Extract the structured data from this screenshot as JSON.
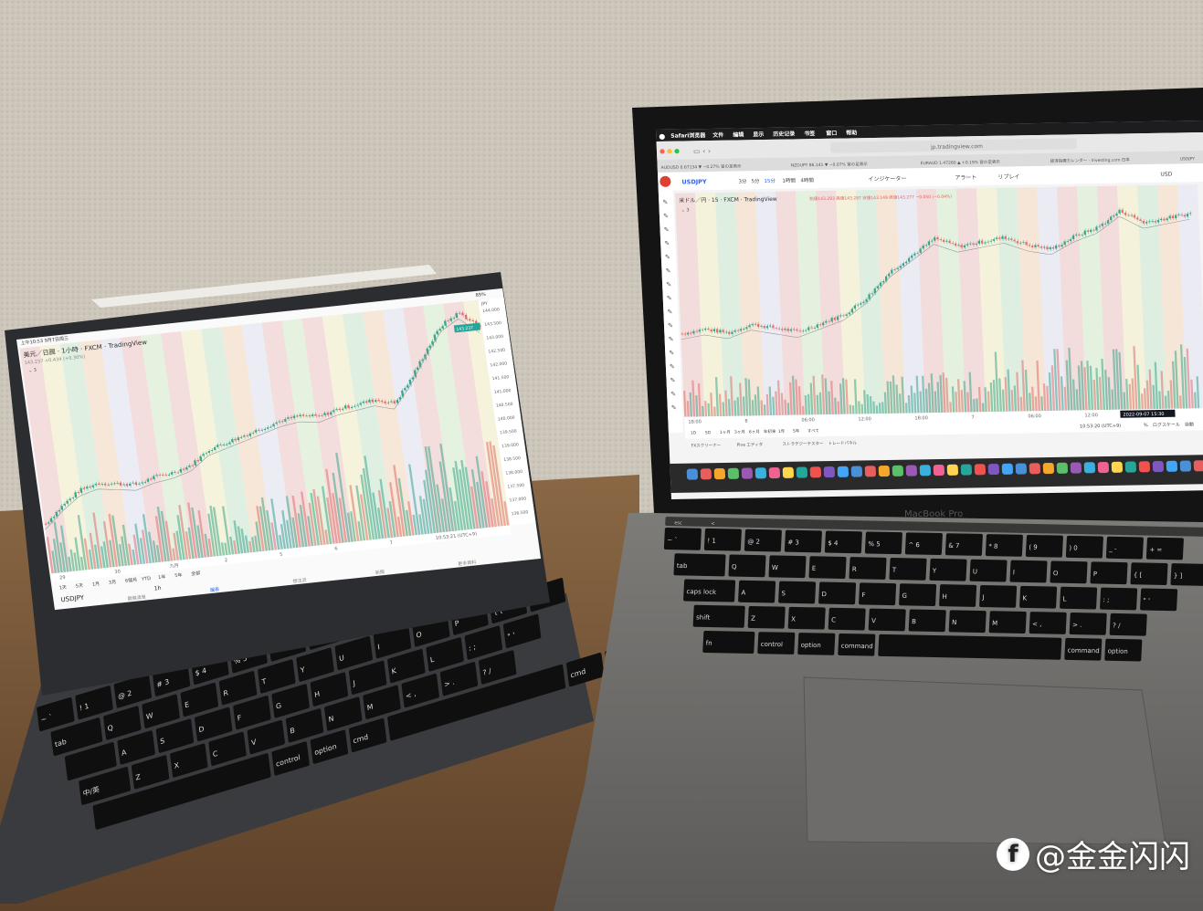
{
  "scene": {
    "colors": {
      "wall": "#cdc7bb",
      "desk": "#7b5a3b",
      "ipad_bezel": "#2b2d30",
      "mac_bezel": "#151515",
      "mac_body": "#6f6e6c",
      "up": "#3ba58a",
      "down": "#e0706a"
    }
  },
  "mac": {
    "menu_bar": [
      "Safari浏览器",
      "文件",
      "编辑",
      "显示",
      "历史记录",
      "书签",
      "窗口",
      "帮助"
    ],
    "url": "jp.tradingview.com",
    "tabs": [
      "AUDUSD 0.67134 ▼ −0.27% 冒の足表示",
      "NZDUPY 86.141 ▼ −0.07% 冒の足表示",
      "EURAUD 1.47280 ▲ +0.19% 冒の足表示",
      "経済指標カレンダー - Investing.com 日本",
      "USDJPY"
    ],
    "toolbar": {
      "symbol": "USDJPY",
      "intervals": [
        "3分",
        "5分",
        "15分",
        "1時間",
        "4時間"
      ],
      "indicators": "インジケーター",
      "alert": "アラート",
      "replay": "リプレイ",
      "currency": "USD"
    },
    "legend": {
      "title": "米ドル／円 · 15 · FXCM · TradingView",
      "ohlc": "始値143.283 高値143.287 安値143.149 終値143.277 −0.050 (−0.04%)",
      "collapse": "⌄ 3"
    },
    "time_axis": [
      "18:00",
      "8",
      "06:00",
      "12:00",
      "18:00",
      "7",
      "06:00",
      "12:00"
    ],
    "cursor_time": "2022-09-07  15:30",
    "ranges": [
      "1D",
      "5D",
      "1ヶ月",
      "3ヶ月",
      "6ヶ月",
      "年初来",
      "1年",
      "5年",
      "すべて"
    ],
    "clock": "10:53:20 (UTC+9)",
    "scale_options": [
      "%",
      "ログスケール",
      "自動"
    ],
    "bottom_tabs": [
      "FXスクリーナー",
      "Pine エディタ",
      "ストラテジーテスター",
      "トレードパネル"
    ],
    "model_label": "MacBook Pro",
    "chart": {
      "price_path": [
        142.2,
        142.25,
        142.2,
        142.3,
        142.25,
        142.2,
        142.3,
        142.4,
        142.6,
        142.9,
        143.1,
        143.3,
        143.2,
        143.25,
        143.3,
        143.2,
        143.15,
        143.3,
        143.4,
        143.6,
        143.45,
        143.5,
        143.55
      ]
    },
    "keyboard": {
      "rows": [
        [
          "~ `",
          "! 1",
          "@ 2",
          "# 3",
          "$ 4",
          "% 5",
          "^ 6",
          "& 7",
          "* 8",
          "( 9",
          ") 0",
          "_ -",
          "+ ="
        ],
        [
          "tab",
          "Q",
          "W",
          "E",
          "R",
          "T",
          "Y",
          "U",
          "I",
          "O",
          "P",
          "{ [",
          "} ]"
        ],
        [
          "caps lock",
          "A",
          "S",
          "D",
          "F",
          "G",
          "H",
          "J",
          "K",
          "L",
          ": ;",
          "\" '"
        ],
        [
          "shift",
          "Z",
          "X",
          "C",
          "V",
          "B",
          "N",
          "M",
          "< ,",
          "> .",
          "? /"
        ],
        [
          "fn",
          "control",
          "option",
          "command",
          "",
          "command",
          "option"
        ]
      ],
      "touch_bar": [
        "esc",
        "<"
      ]
    }
  },
  "ipad": {
    "status": {
      "time": "上午10:53  9月7日周三",
      "battery": "89%"
    },
    "legend": {
      "title": "美元／日圆 · 1小時 · FXCM · TradingView",
      "values": "143.237 +0.434 (+0.30%)",
      "collapse": "⌄ 3"
    },
    "price_labels": [
      "144.000",
      "143.500",
      "143.000",
      "142.500",
      "142.000",
      "141.500",
      "141.000",
      "140.500",
      "140.000",
      "139.500",
      "139.000",
      "138.500",
      "138.000",
      "137.500",
      "137.000",
      "136.500"
    ],
    "current_price": "143.237",
    "currency": "JPY",
    "time_axis": [
      "29",
      "30",
      "九月",
      "2",
      "5",
      "6",
      "7"
    ],
    "clock": "10:53:21 (UTC+9)",
    "ranges": [
      "1天",
      "5天",
      "1月",
      "3月",
      "6個月",
      "YTD",
      "1年",
      "5年",
      "全部"
    ],
    "symbol": "USDJPY",
    "interval": "1h",
    "bottom_tabs": [
      "觀察清單",
      "圖表",
      "想法流",
      "新聞",
      "更多資料"
    ],
    "chart": {
      "price_path": [
        137.6,
        138.2,
        138.7,
        138.9,
        138.8,
        138.7,
        138.9,
        139.0,
        139.2,
        139.7,
        139.9,
        140.1,
        140.3,
        140.5,
        140.6,
        140.5,
        140.7,
        140.8,
        140.9,
        140.7,
        141.5,
        142.5,
        143.4,
        143.8,
        143.2
      ]
    },
    "keyboard": {
      "rows": [
        [
          "~ `",
          "! 1",
          "@ 2",
          "# 3",
          "$ 4",
          "% 5",
          "^ 6",
          "& 7",
          "* 8",
          "( 9",
          ") 0",
          "_ -",
          "+ ="
        ],
        [
          "tab",
          "Q",
          "W",
          "E",
          "R",
          "T",
          "Y",
          "U",
          "I",
          "O",
          "P",
          "{ [",
          "} ]"
        ],
        [
          "",
          "A",
          "S",
          "D",
          "F",
          "G",
          "H",
          "J",
          "K",
          "L",
          ": ;",
          "\" '"
        ],
        [
          "中/英",
          "Z",
          "X",
          "C",
          "V",
          "B",
          "N",
          "M",
          "< ,",
          "> .",
          "? /"
        ],
        [
          "",
          "control",
          "option",
          "cmd",
          "",
          "cmd",
          "option"
        ]
      ]
    }
  },
  "watermark": "@金金闪闪"
}
